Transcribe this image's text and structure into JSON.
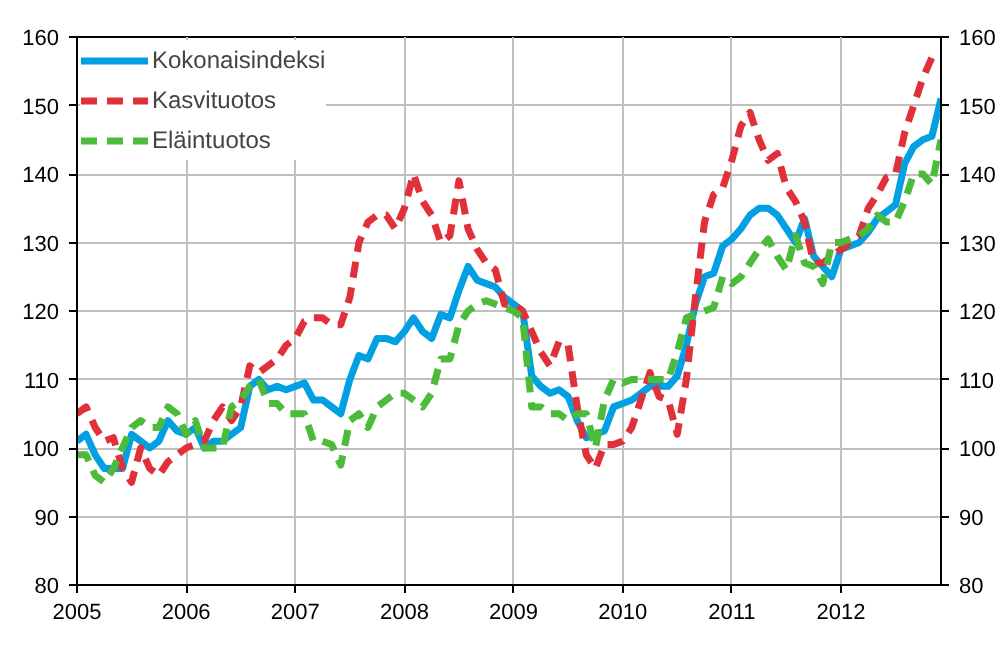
{
  "chart_data": {
    "type": "line",
    "xlim": [
      "2005-01",
      "2012-12"
    ],
    "xticks": [
      "2005",
      "2006",
      "2007",
      "2008",
      "2009",
      "2010",
      "2011",
      "2012"
    ],
    "ylim": [
      80,
      160
    ],
    "yticks": [
      80,
      90,
      100,
      110,
      120,
      130,
      140,
      150,
      160
    ],
    "y2lim": [
      80,
      160
    ],
    "y2ticks": [
      80,
      90,
      100,
      110,
      120,
      130,
      140,
      150,
      160
    ],
    "grid": true,
    "legend": "top left",
    "x": [
      "2005-01",
      "2005-02",
      "2005-03",
      "2005-04",
      "2005-05",
      "2005-06",
      "2005-07",
      "2005-08",
      "2005-09",
      "2005-10",
      "2005-11",
      "2005-12",
      "2006-01",
      "2006-02",
      "2006-03",
      "2006-04",
      "2006-05",
      "2006-06",
      "2006-07",
      "2006-08",
      "2006-09",
      "2006-10",
      "2006-11",
      "2006-12",
      "2007-01",
      "2007-02",
      "2007-03",
      "2007-04",
      "2007-05",
      "2007-06",
      "2007-07",
      "2007-08",
      "2007-09",
      "2007-10",
      "2007-11",
      "2007-12",
      "2008-01",
      "2008-02",
      "2008-03",
      "2008-04",
      "2008-05",
      "2008-06",
      "2008-07",
      "2008-08",
      "2008-09",
      "2008-10",
      "2008-11",
      "2008-12",
      "2009-01",
      "2009-02",
      "2009-03",
      "2009-04",
      "2009-05",
      "2009-06",
      "2009-07",
      "2009-08",
      "2009-09",
      "2009-10",
      "2009-11",
      "2009-12",
      "2010-01",
      "2010-02",
      "2010-03",
      "2010-04",
      "2010-05",
      "2010-06",
      "2010-07",
      "2010-08",
      "2010-09",
      "2010-10",
      "2010-11",
      "2010-12",
      "2011-01",
      "2011-02",
      "2011-03",
      "2011-04",
      "2011-05",
      "2011-06",
      "2011-07",
      "2011-08",
      "2011-09",
      "2011-10",
      "2011-11",
      "2011-12",
      "2012-01",
      "2012-02",
      "2012-03",
      "2012-04",
      "2012-05",
      "2012-06",
      "2012-07",
      "2012-08",
      "2012-09",
      "2012-10",
      "2012-11",
      "2012-12"
    ],
    "series": [
      {
        "name": "Kokonaisindeksi",
        "color": "#00a0e3",
        "line_style": "solid",
        "values": [
          101,
          102,
          99,
          97,
          97,
          97,
          102,
          101,
          100,
          101,
          104,
          102.5,
          102,
          103,
          100,
          101,
          101,
          102,
          103,
          109,
          110,
          108.5,
          109,
          108.5,
          109,
          109.5,
          107,
          107,
          106,
          105,
          110,
          113.5,
          113,
          116,
          116,
          115.5,
          117,
          119,
          117,
          116,
          119.5,
          119,
          123,
          126.5,
          124.5,
          124,
          123.5,
          122,
          121,
          120,
          110.5,
          109,
          108,
          108.5,
          107.5,
          104,
          101.5,
          102,
          102.5,
          106,
          106.5,
          107,
          108,
          109,
          109,
          109,
          110.5,
          115,
          121,
          125,
          125.5,
          129.5,
          130.5,
          132,
          134,
          135,
          135,
          134,
          132,
          130,
          133.5,
          128,
          126.5,
          125,
          129,
          129.5,
          130,
          131.5,
          133.5,
          134.5,
          135.5,
          141.5,
          144,
          145,
          145.5,
          151
        ]
      },
      {
        "name": "Kasvituotos",
        "color": "#e0303a",
        "line_style": "dashed",
        "values": [
          105,
          106,
          103,
          101,
          101.5,
          97,
          95,
          100,
          97,
          96,
          98,
          99,
          100,
          100.5,
          101,
          104,
          106,
          104,
          106,
          112,
          111,
          112,
          113,
          115,
          116,
          118.5,
          119,
          119,
          118,
          118,
          122,
          130,
          133,
          134,
          134,
          132,
          135,
          140,
          136,
          134,
          130,
          131,
          139,
          132,
          129,
          127,
          126,
          121,
          121,
          120,
          117,
          114,
          112,
          115.5,
          115,
          106,
          99,
          97,
          100.5,
          100.5,
          101,
          103,
          107,
          111,
          107.5,
          107,
          102,
          110,
          122,
          133,
          137,
          138,
          142,
          147,
          149,
          145,
          142,
          143,
          138,
          136,
          133,
          127,
          127,
          128,
          129,
          130,
          131,
          135,
          137,
          139.5,
          140,
          146,
          150,
          154,
          157,
          157
        ]
      },
      {
        "name": "Eläintuotos",
        "color": "#4cbb3a",
        "line_style": "dashed",
        "values": [
          99,
          99,
          96,
          95,
          97,
          100,
          103,
          104,
          103,
          103,
          106,
          105,
          102,
          104,
          100,
          100,
          100,
          106,
          107,
          109,
          110,
          106.5,
          106.5,
          105,
          105,
          105,
          101,
          101,
          100.5,
          97.5,
          104,
          105,
          103,
          106,
          107,
          108,
          108,
          107,
          106,
          108,
          113,
          113,
          118,
          120,
          121,
          121.5,
          121,
          120.5,
          120,
          119,
          106,
          106,
          105,
          105,
          104,
          105,
          105,
          100,
          107,
          110,
          109.5,
          110,
          110,
          110,
          110,
          110,
          114,
          119,
          119.5,
          120,
          120.5,
          125,
          124,
          125,
          127,
          129,
          130.5,
          128,
          126,
          131,
          127,
          126.5,
          124,
          130,
          130,
          130.5,
          131,
          132,
          134,
          133,
          133,
          136,
          140,
          140,
          138.5,
          145
        ]
      }
    ]
  }
}
